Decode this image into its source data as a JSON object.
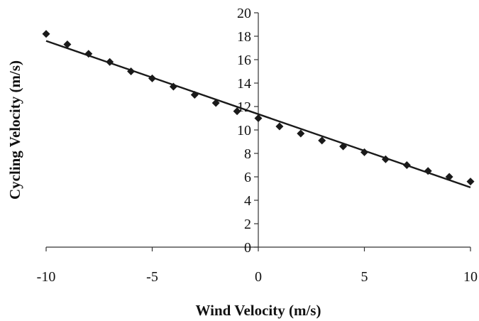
{
  "chart_data": {
    "type": "scatter",
    "title": "",
    "xlabel": "Wind Velocity (m/s)",
    "ylabel": "Cycling Velocity (m/s)",
    "xlim": [
      -10,
      10
    ],
    "ylim": [
      0,
      20
    ],
    "x_ticks": [
      "-10",
      "-5",
      "0",
      "5",
      "10"
    ],
    "y_ticks": [
      "0",
      "2",
      "4",
      "6",
      "8",
      "10",
      "12",
      "14",
      "16",
      "18",
      "20"
    ],
    "grid": false,
    "legend": "none",
    "marker": "diamond",
    "colors": {
      "marker": "#1a1a1a",
      "line": "#1a1a1a",
      "axis": "#333333"
    },
    "series": [
      {
        "x": [
          -10,
          -9,
          -8,
          -7,
          -6,
          -5,
          -4,
          -3,
          -2,
          -1,
          0,
          1,
          2,
          3,
          4,
          5,
          6,
          7,
          8,
          9,
          10
        ],
        "values": [
          18.2,
          17.3,
          16.5,
          15.8,
          15.0,
          14.4,
          13.7,
          13.0,
          12.3,
          11.6,
          11.0,
          10.3,
          9.7,
          9.1,
          8.6,
          8.1,
          7.5,
          7.0,
          6.5,
          6.0,
          5.6
        ]
      }
    ],
    "trendline": {
      "type": "linear",
      "x": [
        -10,
        10
      ],
      "y": [
        17.6,
        5.1
      ]
    }
  }
}
